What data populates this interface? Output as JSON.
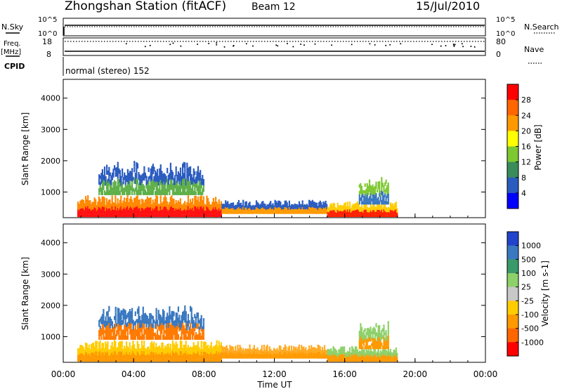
{
  "header": {
    "station": "Zhongshan Station (fitACF)",
    "beam": "Beam 12",
    "date": "15/Jul/2010"
  },
  "top_panels": {
    "nsky": {
      "label": "N.Sky",
      "tick_top": "10^5",
      "tick_bottom": "10^0"
    },
    "nsearch": {
      "label": "N.Search",
      "tick_top": "10^5",
      "tick_bottom": "10^0"
    },
    "freq": {
      "label_line1": "Freq.",
      "label_line2": "[MHz]",
      "tick_top": "18",
      "tick_bottom": "8"
    },
    "nave": {
      "label": "Nave",
      "tick_top": "80",
      "tick_bottom": "0"
    },
    "cpid": {
      "label": "CPID",
      "mode": "normal (stereo) 152"
    }
  },
  "chart_data": [
    {
      "type": "heatmap",
      "name": "power",
      "ylabel": "Slant Range [km]",
      "yticks": [
        1000,
        2000,
        3000,
        4000
      ],
      "ylim": [
        180,
        4600
      ],
      "xlim_hours": [
        0,
        24
      ],
      "colorbar": {
        "label": "Power [dB]",
        "ticks": [
          "4",
          "8",
          "12",
          "16",
          "20",
          "24",
          "28"
        ],
        "colors": [
          "#0000ff",
          "#2a5bbf",
          "#3a8c5a",
          "#7ec832",
          "#ffff00",
          "#ff9900",
          "#ff6600",
          "#ff0000"
        ]
      },
      "echo_regions": [
        {
          "t0": 0.8,
          "t1": 9.0,
          "r0": 200,
          "r1": 900,
          "core": "#ff1010",
          "edge": "#ff8800"
        },
        {
          "t0": 9.0,
          "t1": 15.0,
          "r0": 300,
          "r1": 750,
          "core": "#ff9900",
          "edge": "#2a5bbf"
        },
        {
          "t0": 15.0,
          "t1": 19.0,
          "r0": 200,
          "r1": 700,
          "core": "#ff2000",
          "edge": "#ffcc00"
        },
        {
          "t0": 2.0,
          "t1": 8.0,
          "r0": 900,
          "r1": 2000,
          "core": "#5fb04a",
          "edge": "#2a5bbf"
        },
        {
          "t0": 16.8,
          "t1": 18.5,
          "r0": 600,
          "r1": 1500,
          "core": "#3a78c0",
          "edge": "#7ec832"
        }
      ]
    },
    {
      "type": "heatmap",
      "name": "velocity",
      "xlabel": "Time UT",
      "ylabel": "Slant Range [km]",
      "yticks": [
        1000,
        2000,
        3000,
        4000
      ],
      "ylim": [
        180,
        4600
      ],
      "xticks": [
        "00:00",
        "04:00",
        "08:00",
        "12:00",
        "16:00",
        "20:00",
        "00:00"
      ],
      "xlim_hours": [
        0,
        24
      ],
      "colorbar": {
        "label": "Velocity [m s-1]",
        "ticks": [
          "1000",
          "500",
          "100",
          "25",
          "-25",
          "-100",
          "-500",
          "-1000"
        ],
        "colors": [
          "#2244cc",
          "#3a78c0",
          "#3a9a6a",
          "#8ed06a",
          "#c8c8c8",
          "#ffcc00",
          "#ff9900",
          "#ff6600",
          "#ff0000"
        ]
      },
      "echo_regions": [
        {
          "t0": 0.8,
          "t1": 9.0,
          "r0": 200,
          "r1": 900,
          "core": "#ff9900",
          "edge": "#ffcc00"
        },
        {
          "t0": 9.0,
          "t1": 15.0,
          "r0": 300,
          "r1": 750,
          "core": "#ff9900",
          "edge": "#ffaa22"
        },
        {
          "t0": 15.0,
          "t1": 19.0,
          "r0": 200,
          "r1": 700,
          "core": "#ff9900",
          "edge": "#8ed06a"
        },
        {
          "t0": 2.0,
          "t1": 8.0,
          "r0": 900,
          "r1": 2000,
          "core": "#ff7a00",
          "edge": "#3a78c0"
        },
        {
          "t0": 16.8,
          "t1": 18.5,
          "r0": 600,
          "r1": 1500,
          "core": "#ff9900",
          "edge": "#8ed06a"
        }
      ]
    }
  ]
}
